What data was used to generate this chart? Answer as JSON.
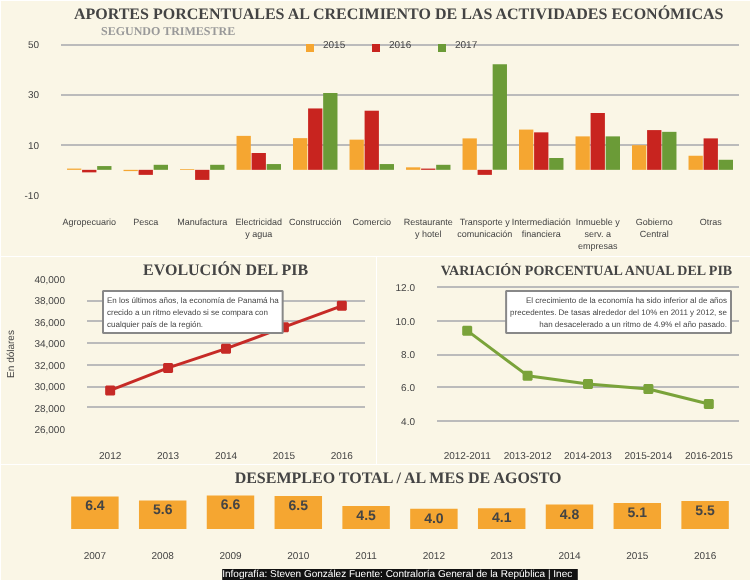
{
  "chart_data": [
    {
      "type": "bar",
      "title": "APORTES PORCENTUALES AL CRECIMIENTO DE LAS ACTIVIDADES ECONÓMICAS",
      "subtitle": "SEGUNDO TRIMESTRE",
      "categories": [
        "Agropecuario",
        "Pesca",
        "Manufactura",
        "Electricidad y agua",
        "Construcción",
        "Comercio",
        "Restaurante y hotel",
        "Transporte y comunicación",
        "Intermediación financiera",
        "Inmueble y serv. a empresas",
        "Gobierno Central",
        "Otras"
      ],
      "series": [
        {
          "name": "2015",
          "color": "#f5a631",
          "values": [
            0.5,
            -0.5,
            0.3,
            13.5,
            12.6,
            12,
            1,
            12.5,
            16,
            13.3,
            9.8,
            5.6
          ]
        },
        {
          "name": "2016",
          "color": "#c8241f",
          "values": [
            -1,
            -2,
            -4,
            6.7,
            24.4,
            23.5,
            0.5,
            -2,
            14.9,
            22.6,
            15.8,
            12.5
          ]
        },
        {
          "name": "2017",
          "color": "#6b9b37",
          "values": [
            1.5,
            2,
            2,
            2.3,
            30.5,
            2.3,
            2,
            42,
            4.7,
            13.3,
            15.1,
            4
          ]
        }
      ],
      "ylim": [
        -10,
        52
      ],
      "yticks": [
        -10,
        10,
        30,
        50
      ],
      "grid": "y",
      "legend": "top"
    },
    {
      "type": "line",
      "title": "EVOLUCIÓN DEL PIB",
      "ylabel": "En dólares",
      "x": [
        2012,
        2013,
        2014,
        2015,
        2016
      ],
      "series": [
        {
          "color": "#c62a26",
          "values": [
            29600,
            31700,
            33500,
            35500,
            37500
          ]
        }
      ],
      "xlim": [
        2011.6,
        2016.4
      ],
      "xticks": [
        2012,
        2013,
        2014,
        2015,
        2016
      ],
      "ylim": [
        26000,
        40000
      ],
      "yticks": [
        {
          "value": 26000,
          "label": "26,000"
        },
        {
          "value": 28000,
          "label": "28,000"
        },
        {
          "value": 30000,
          "label": "30,000"
        },
        {
          "value": 32000,
          "label": "32,000"
        },
        {
          "value": 34000,
          "label": "34,000"
        },
        {
          "value": 36000,
          "label": "36,000"
        },
        {
          "value": 38000,
          "label": "38,000"
        },
        {
          "value": 40000,
          "label": "40,000"
        }
      ],
      "grid": "y",
      "marker": "square",
      "line_style": "solid",
      "annotations": [
        "En los últimos años, la economía de Panamá ha crecido a un ritmo elevado si se compara con cualquier país de la región."
      ]
    },
    {
      "type": "line",
      "title": "VARIACIÓN PORCENTUAL ANUAL DEL PIB",
      "categories": [
        "2012-2011",
        "2013-2012",
        "2014-2013",
        "2015-2014",
        "2016-2015"
      ],
      "series": [
        {
          "color": "#7aa33a",
          "values": [
            9.4,
            6.7,
            6.2,
            5.9,
            5.0
          ]
        }
      ],
      "ylim": [
        3.5,
        12.5
      ],
      "yticks": [
        {
          "value": 4,
          "label": "4.0"
        },
        {
          "value": 6,
          "label": "6.0"
        },
        {
          "value": 8,
          "label": "8.0"
        },
        {
          "value": 10,
          "label": "10.0"
        },
        {
          "value": 12,
          "label": "12.0"
        }
      ],
      "grid": "y",
      "marker": "square",
      "line_style": "solid",
      "annotations": [
        "El crecimiento de la economía ha sido inferior al de años precedentes. De tasas alrededor del 10% en 2011 y 2012, se han desacelerado a un ritmo de 4.9% el año pasado."
      ]
    },
    {
      "type": "bar",
      "title": "DESEMPLEO TOTAL / AL MES DE AGOSTO",
      "categories": [
        "2007",
        "2008",
        "2009",
        "2010",
        "2011",
        "2012",
        "2013",
        "2014",
        "2015",
        "2016"
      ],
      "values": [
        6.4,
        5.6,
        6.6,
        6.5,
        4.5,
        4.0,
        4.1,
        4.8,
        5.1,
        5.5
      ],
      "value_labels": [
        "6.4",
        "5.6",
        "6.6",
        "6.5",
        "4.5",
        "4.0",
        "4.1",
        "4.8",
        "5.1",
        "5.5"
      ],
      "color": "#f5a631",
      "tick_labels": "x",
      "annotations": [
        "Infografía: Steven González   Fuente: Contraloría General de la República | Inec"
      ]
    }
  ]
}
